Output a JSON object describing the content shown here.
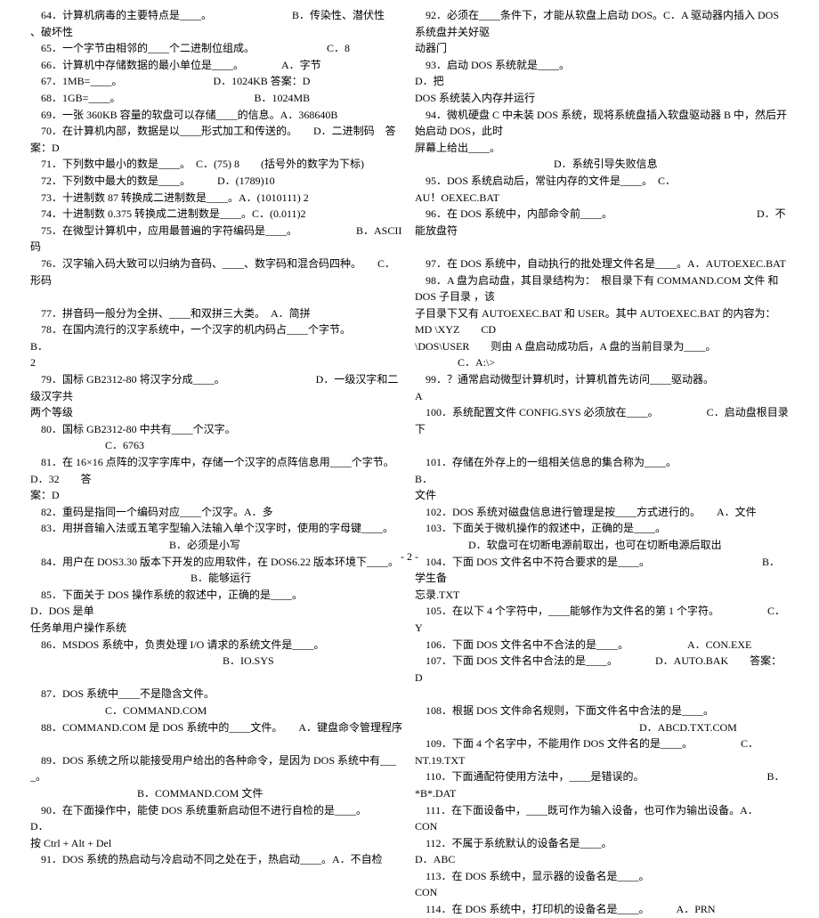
{
  "font": {
    "size_pt": 9,
    "family": "SimSun"
  },
  "layout": {
    "columns": 2,
    "page_number": "- 2 -"
  },
  "left": [
    "　64．计算机病毒的主要特点是____。　　　　　　　　B．传染性、潜伏性",
    "、破坏性",
    "　65．一个字节由相邻的____个二进制位组成。　　　　　　　 C．8",
    "　66．计算机中存储数据的最小单位是____。　　　　A．字节",
    "　67．1MB=____。　　　　　　　　　D．1024KB 答案：D",
    "　68．1GB=____。　　　　　　　　　　　　　B．1024MB",
    "　69．一张 360KB 容量的软盘可以存储____的信息。A．368640B",
    "　70．在计算机内部，数据是以____形式加工和传送的。　　D．二进制码　答案：D",
    "　71．下列数中最小的数是____。　C．(75) 8　　(括号外的数字为下标)",
    "　72．下列数中最大的数是____。　　　D．(1789)10",
    "　73．十进制数 87 转换成二进制数是____。A．(1010111) 2",
    "　74．十进制数 0.375 转换成二进制数是____。C．(0.011)2",
    "　75．在微型计算机中，应用最普遍的字符编码是____。　　　　　　B．ASCII 码",
    "　76．汉字输入码大致可以归纳为音码、____、数字码和混合码四种。　　C．　形码",
    "",
    "　77．拼音码一般分为全拼、____和双拼三大类。　A．简拼",
    "　78．在国内流行的汉字系统中，一个汉字的机内码占____个字节。　　　　　　B．",
    "2",
    "　79．国标 GB2312-80 将汉字分成____。　　　　　　　　　D．一级汉字和二级汉字共",
    "两个等级",
    "　80．国标 GB2312-80 中共有____个汉字。",
    "　　　　　　　C．6763",
    "　81．在 16×16 点阵的汉字字库中，存储一个汉字的点阵信息用____个字节。　　　D．32　　答",
    "案：D",
    "　82．重码是指同一个编码对应____个汉字。A．多",
    "　83．用拼音输入法或五笔字型输入法输入单个汉字时，使用的字母键____。",
    "　　　　　　　　　　　　　B．必须是小写",
    "　84．用户在 DOS3.30 版本下开发的应用软件，在 DOS6.22 版本环境下____。",
    "　　　　　　　　　　　　　　　B．能够运行",
    "　85．下面关于 DOS 操作系统的叙述中，正确的是____。　　　　　　　　　　D．DOS 是单",
    "任务单用户操作系统",
    "　86．MSDOS 系统中，负责处理 I/O 请求的系统文件是____。",
    "　　　　　　　　　　　　　　　　　　B．IO.SYS",
    "",
    "　87．DOS 系统中____不是隐含文件。",
    "　　　　　　　C．COMMAND.COM",
    "　88．COMMAND.COM 是 DOS 系统中的____文件。　　A．键盘命令管理程序",
    "",
    "　89．DOS 系统之所以能接受用户给出的各种命令，是因为 DOS 系统中有____。",
    "　　　　　　　　　　B．COMMAND.COM 文件",
    "　90．在下面操作中，能使 DOS 系统重新启动但不进行自检的是____。　　　　　　　　D．",
    "按 Ctrl + Alt + Del",
    "　91．DOS 系统的热启动与冷启动不同之处在于，热启动____。A．不自检"
  ],
  "right": [
    "　92．必须在____条件下，才能从软盘上启动 DOS。C．A 驱动器内插入 DOS 系统盘并关好驱",
    "动器门",
    "　93．启动 DOS 系统就是____。　　　　　　　　　　　　　　　　　　　　　D．把",
    "DOS 系统装入内存并运行",
    "　94．微机硬盘 C 中未装 DOS 系统，现将系统盘插入软盘驱动器 B 中，然后开始启动 DOS，此时",
    "屏幕上给出____。",
    "　　　　　　　　　　　　　D．系统引导失败信息",
    "　95．DOS 系统启动后，常驻内存的文件是____。　C．",
    "AU！OEXEC.BAT",
    "　96．在 DOS 系统中，内部命令前____。　　　　　　　　　　　　　　D．不能放盘符",
    "",
    "　97．在 DOS 系统中，自动执行的批处理文件名是____。A．AUTOEXEC.BAT",
    "　98．A 盘为启动盘，其目录结构为：　根目录下有 COMMAND.COM 文件 和 DOS 子目录 ，该",
    "子目录下又有 AUTOEXEC.BAT 和 USER。其中 AUTOEXEC.BAT 的内容为：　MD \\XYZ　　CD",
    "\\DOS\\USER　　则由 A 盘启动成功后，A 盘的当前目录为____。",
    "　　　　C．A:\\>",
    "　99．？通常启动微型计算机时，计算机首先访问____驱动器。",
    "A",
    "　100．系统配置文件 CONFIG.SYS 必须放在____。　　　　　C．启动盘根目录下",
    "",
    "　101．存储在外存上的一组相关信息的集合称为____。　　　　　　　　　　　　B．",
    "文件",
    "　102．DOS 系统对磁盘信息进行管理是按____方式进行的。　　A．文件",
    "　103．下面关于微机操作的叙述中，正确的是____。",
    "　　　　　D．软盘可在切断电源前取出，也可在切断电源后取出",
    "　104．下面 DOS 文件名中不符合要求的是____。　　　　　　　　　　　B．学生备",
    "忘录.TXT",
    "　105．在以下 4 个字符中，____能够作为文件名的第 1 个字符。　　　　　C．",
    "Y",
    "　106．下面 DOS 文件名中不合法的是____。　　　　　　A．CON.EXE",
    "　107．下面 DOS 文件名中合法的是____。　　　　D．AUTO.BAK　　答案：D",
    "",
    "　108．根据 DOS 文件命名规则，下面文件名中合法的是____。",
    "　　　　　　　　　　　　　　　　　　　　　D．ABCD.TXT.COM",
    "　109．下面 4 个名字中，不能用作 DOS 文件名的是____。　　　　　C．",
    "NT.19.TXT",
    "　110．下面通配符使用方法中，____是错误的。　　　　　　　　　　　　B．",
    "*B*.DAT",
    "　111．在下面设备中，____既可作为输入设备，也可作为输出设备。A．",
    "CON",
    "　112．不属于系统默认的设备名是____。　　　　　　　　　　　　　　　　D．ABC",
    "　113．在 DOS 系统中，显示器的设备名是____。",
    "CON",
    "　114．在 DOS 系统中，打印机的设备名是____。　　　A．PRN"
  ]
}
